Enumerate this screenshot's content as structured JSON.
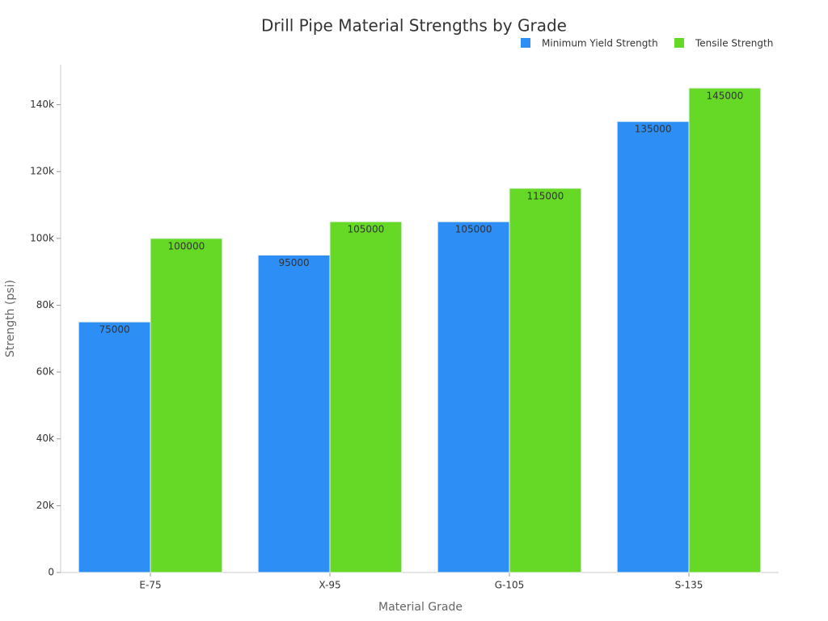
{
  "chart_data": {
    "type": "bar",
    "title": "Drill Pipe Material Strengths by Grade",
    "x_label": "Material Grade",
    "y_label": "Strength (psi)",
    "categories": [
      "E-75",
      "X-95",
      "G-105",
      "S-135"
    ],
    "series": [
      {
        "name": "Minimum Yield Strength",
        "color": "#2d8ef5",
        "values": [
          75000,
          95000,
          105000,
          135000
        ]
      },
      {
        "name": "Tensile Strength",
        "color": "#66d926",
        "values": [
          100000,
          105000,
          115000,
          145000
        ]
      }
    ],
    "ylim": [
      0,
      152000
    ],
    "yticks": [
      0,
      {
        "value": 20000,
        "label": "20k"
      },
      {
        "value": 40000,
        "label": "40k"
      },
      {
        "value": 60000,
        "label": "60k"
      },
      {
        "value": 80000,
        "label": "80k"
      },
      {
        "value": 100000,
        "label": "100k"
      },
      {
        "value": 120000,
        "label": "120k"
      },
      {
        "value": 140000,
        "label": "140k"
      }
    ],
    "grid": false,
    "legend": "top-right"
  }
}
